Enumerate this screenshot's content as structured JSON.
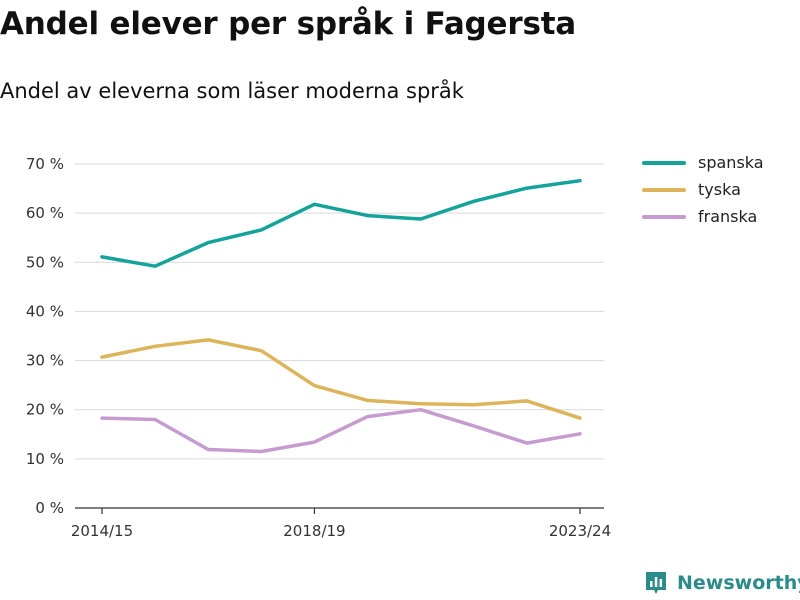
{
  "header": {
    "title": "Andel elever per språk i Fagersta",
    "subtitle": "Andel av eleverna som läser moderna språk"
  },
  "brand": {
    "name": "Newsworthy",
    "color": "#2a8b8a",
    "icon": "newsworthy-logo-icon"
  },
  "chart_data": {
    "type": "line",
    "x": [
      "2014/15",
      "2015/16",
      "2016/17",
      "2017/18",
      "2018/19",
      "2019/20",
      "2020/21",
      "2021/22",
      "2022/23",
      "2023/24"
    ],
    "x_tick_labels": [
      "2014/15",
      "2018/19",
      "2023/24"
    ],
    "y_ticks": [
      0,
      10,
      20,
      30,
      40,
      50,
      60,
      70
    ],
    "y_tick_labels": [
      "0 %",
      "10 %",
      "20 %",
      "30 %",
      "40 %",
      "50 %",
      "60 %",
      "70 %"
    ],
    "ylim": [
      0,
      70
    ],
    "grid": true,
    "legend_position": "top-right",
    "series": [
      {
        "name": "spanska",
        "color": "#14a39a",
        "values": [
          51.1,
          49.2,
          54.0,
          56.6,
          61.8,
          59.5,
          58.8,
          62.4,
          65.1,
          66.6
        ]
      },
      {
        "name": "tyska",
        "color": "#dcb45a",
        "values": [
          30.7,
          32.9,
          34.2,
          32.0,
          24.9,
          21.9,
          21.2,
          21.0,
          21.8,
          18.3
        ]
      },
      {
        "name": "franska",
        "color": "#c59bd0",
        "values": [
          18.3,
          18.0,
          11.9,
          11.5,
          13.4,
          18.6,
          20.0,
          16.7,
          13.2,
          15.1
        ]
      }
    ]
  }
}
